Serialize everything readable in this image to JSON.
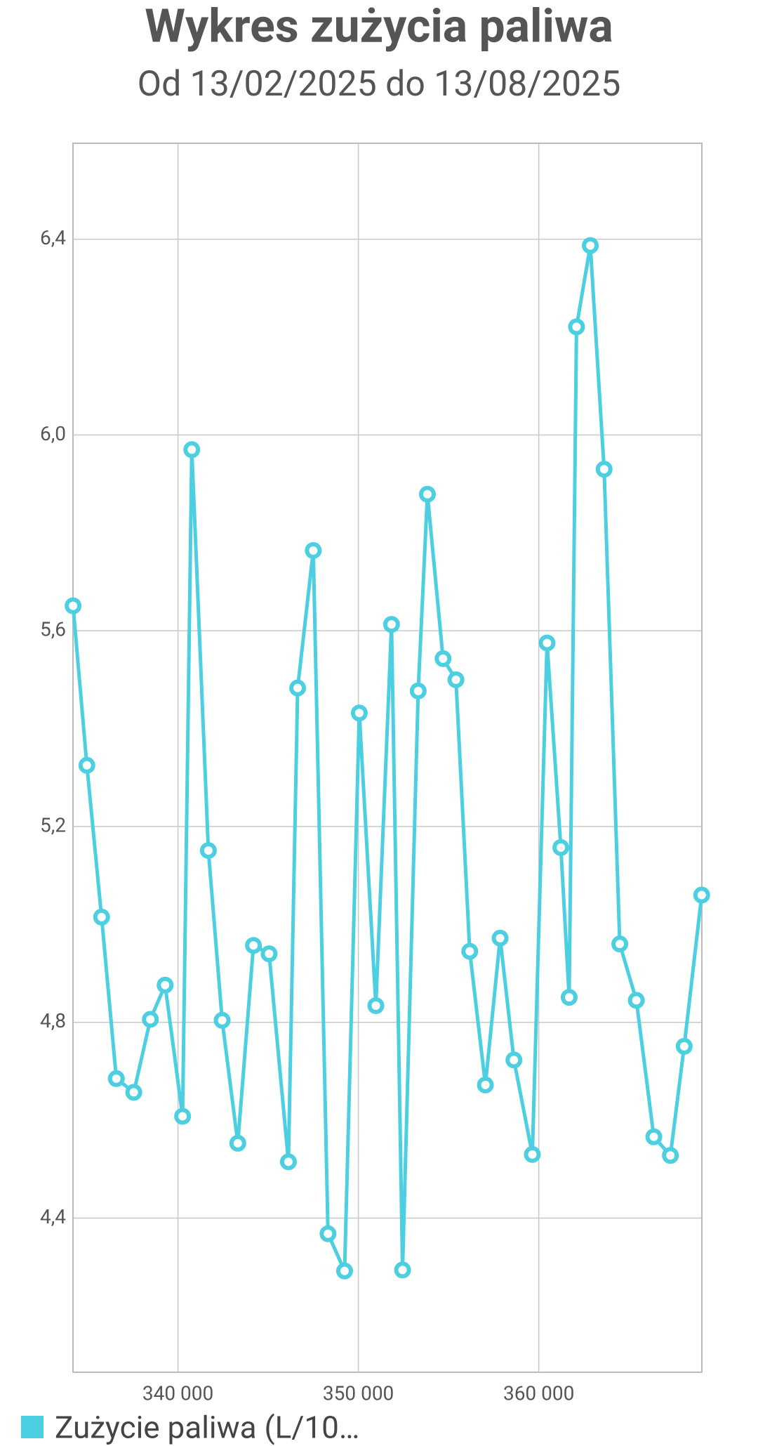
{
  "chart_data": {
    "type": "line",
    "title": "Wykres zużycia paliwa",
    "subtitle": "Od 13/02/2025 do 13/08/2025",
    "x": [
      334184,
      334949,
      335765,
      336582,
      337551,
      338469,
      339286,
      340255,
      340765,
      341684,
      342449,
      343316,
      344184,
      345051,
      346122,
      346633,
      347500,
      348316,
      349235,
      350051,
      350969,
      351837,
      352449,
      353316,
      353827,
      354694,
      355408,
      356173,
      357041,
      357857,
      358622,
      359643,
      360459,
      361224,
      361684,
      362092,
      362857,
      363622,
      364490,
      365408,
      366378,
      367296,
      368061,
      369031
    ],
    "series": [
      {
        "name": "Zużycie paliwa (L/10…",
        "color": "#4ccfe0",
        "values": [
          5.651,
          5.325,
          5.015,
          4.685,
          4.657,
          4.806,
          4.876,
          4.608,
          5.97,
          5.151,
          4.804,
          4.553,
          4.957,
          4.94,
          4.515,
          5.483,
          5.764,
          4.368,
          4.292,
          5.432,
          4.834,
          5.613,
          4.294,
          5.477,
          5.879,
          5.543,
          5.5,
          4.945,
          4.672,
          4.972,
          4.723,
          4.53,
          5.575,
          5.157,
          4.851,
          6.221,
          6.387,
          5.93,
          4.96,
          4.845,
          4.566,
          4.528,
          4.751,
          5.06
        ]
      }
    ],
    "xlim": [
      334180,
      369040
    ],
    "xticks": [
      {
        "value": 340000,
        "label": "340 000"
      },
      {
        "value": 350000,
        "label": "350 000"
      },
      {
        "value": 360000,
        "label": "360 000"
      }
    ],
    "ylim": [
      4.085,
      6.596
    ],
    "yticks": [
      {
        "value": 4.4,
        "label": "4,4"
      },
      {
        "value": 4.8,
        "label": "4,8"
      },
      {
        "value": 5.2,
        "label": "5,2"
      },
      {
        "value": 5.6,
        "label": "5,6"
      },
      {
        "value": 6.0,
        "label": "6,0"
      },
      {
        "value": 6.4,
        "label": "6,4"
      }
    ],
    "grid": true
  }
}
